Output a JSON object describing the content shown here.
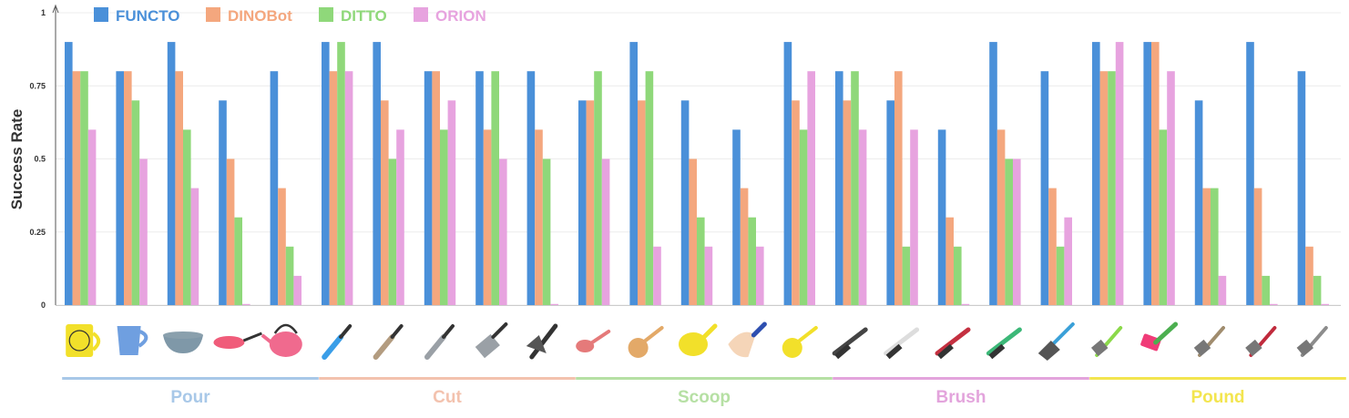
{
  "chart_data": {
    "type": "bar",
    "title": "",
    "xlabel": "",
    "ylabel": "Success Rate",
    "ylim": [
      0,
      1
    ],
    "yticks": [
      "0",
      "0.25",
      "0.5",
      "0.75",
      "1"
    ],
    "grid": true,
    "legend_position": "top-left",
    "categories": [
      "mug",
      "cup",
      "bowl",
      "pan",
      "kettle",
      "knife-blue",
      "knife-small",
      "knife-chef",
      "cleaver",
      "axe",
      "spoon-red",
      "ladle-wood",
      "scoop-yellow",
      "shovel-toy",
      "ladle-yellow",
      "brush-black",
      "brush-white",
      "brush-red",
      "brush-bottle",
      "broom",
      "hammer-green",
      "mallet-pink",
      "meat-tenderizer",
      "hammer-red",
      "meat-hammer"
    ],
    "series": [
      {
        "name": "FUNCTO",
        "color": "#4A90D9",
        "values": [
          0.9,
          0.8,
          0.9,
          0.7,
          0.8,
          0.9,
          0.9,
          0.8,
          0.8,
          0.8,
          0.7,
          0.9,
          0.7,
          0.6,
          0.9,
          0.8,
          0.7,
          0.6,
          0.9,
          0.8,
          0.9,
          0.9,
          0.7,
          0.9,
          0.8
        ]
      },
      {
        "name": "DINOBot",
        "color": "#F4A77E",
        "values": [
          0.8,
          0.8,
          0.8,
          0.5,
          0.4,
          0.8,
          0.7,
          0.8,
          0.6,
          0.6,
          0.7,
          0.7,
          0.5,
          0.4,
          0.7,
          0.7,
          0.8,
          0.3,
          0.6,
          0.4,
          0.8,
          0.9,
          0.4,
          0.4,
          0.2
        ]
      },
      {
        "name": "DITTO",
        "color": "#8FD87A",
        "values": [
          0.8,
          0.7,
          0.6,
          0.3,
          0.2,
          0.9,
          0.5,
          0.6,
          0.8,
          0.5,
          0.8,
          0.8,
          0.3,
          0.3,
          0.6,
          0.8,
          0.2,
          0.2,
          0.5,
          0.2,
          0.8,
          0.6,
          0.4,
          0.1,
          0.1
        ]
      },
      {
        "name": "ORION",
        "color": "#E7A3DF",
        "values": [
          0.6,
          0.5,
          0.4,
          0.0,
          0.1,
          0.8,
          0.6,
          0.7,
          0.5,
          0.0,
          0.5,
          0.2,
          0.2,
          0.2,
          0.8,
          0.6,
          0.6,
          0.0,
          0.5,
          0.3,
          0.9,
          0.8,
          0.1,
          0.0,
          0.0
        ]
      }
    ],
    "groups": [
      {
        "label": "Pour",
        "color": "#A8C8E8",
        "start": 0,
        "end": 4
      },
      {
        "label": "Cut",
        "color": "#F3C2AE",
        "start": 5,
        "end": 9
      },
      {
        "label": "Scoop",
        "color": "#B6E0A4",
        "start": 10,
        "end": 14
      },
      {
        "label": "Brush",
        "color": "#E3A4DC",
        "start": 15,
        "end": 19
      },
      {
        "label": "Pound",
        "color": "#F3E54F",
        "start": 20,
        "end": 24
      }
    ],
    "tool_icons": [
      "mug-icon",
      "cup-icon",
      "bowl-icon",
      "pan-icon",
      "kettle-icon",
      "knife-icon",
      "knife-icon",
      "knife-icon",
      "cleaver-icon",
      "axe-icon",
      "spoon-icon",
      "ladle-icon",
      "scoop-icon",
      "shovel-icon",
      "ladle-icon",
      "brush-icon",
      "brush-icon",
      "brush-icon",
      "brush-icon",
      "broom-icon",
      "hammer-icon",
      "mallet-icon",
      "hammer-icon",
      "hammer-icon",
      "hammer-icon"
    ]
  }
}
